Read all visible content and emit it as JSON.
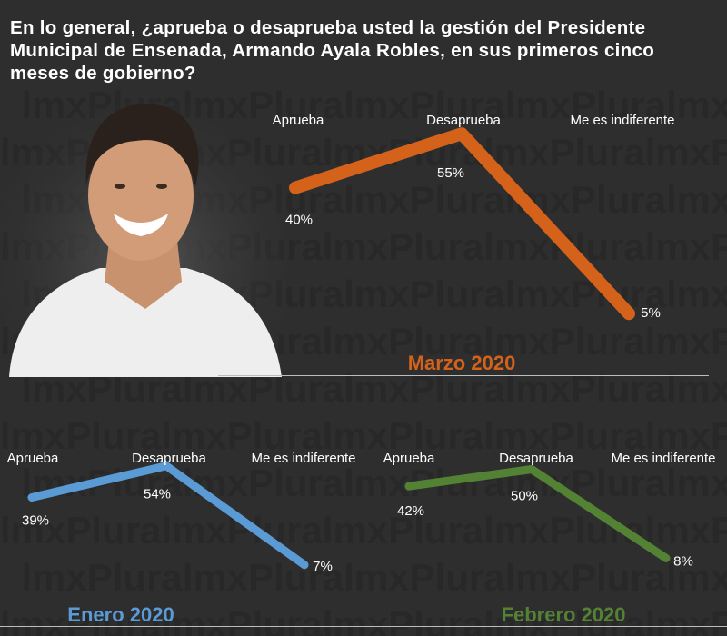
{
  "title": "En lo general, ¿aprueba o desaprueba usted la gestión del Presidente Municipal de Ensenada, Armando Ayala Robles, en sus primeros cinco meses de gobierno?",
  "watermark": "lmxPluralmxPluralmxPluralmxPluralmxPluralmx",
  "chart_data": [
    {
      "type": "line",
      "title": "Marzo 2020",
      "color": "#d4621b",
      "categories": [
        "Aprueba",
        "Desaprueba",
        "Me es indiferente"
      ],
      "values": [
        40,
        55,
        5
      ],
      "value_labels": [
        "40%",
        "55%",
        "5%"
      ],
      "ylim": [
        0,
        60
      ]
    },
    {
      "type": "line",
      "title": "Enero 2020",
      "color": "#5b9bd5",
      "categories": [
        "Aprueba",
        "Desaprueba",
        "Me es indiferente"
      ],
      "values": [
        39,
        54,
        7
      ],
      "value_labels": [
        "39%",
        "54%",
        "7%"
      ],
      "ylim": [
        0,
        60
      ]
    },
    {
      "type": "line",
      "title": "Febrero 2020",
      "color": "#548235",
      "categories": [
        "Aprueba",
        "Desaprueba",
        "Me es indiferente"
      ],
      "values": [
        42,
        50,
        8
      ],
      "value_labels": [
        "42%",
        "50%",
        "8%"
      ],
      "ylim": [
        0,
        60
      ]
    }
  ]
}
